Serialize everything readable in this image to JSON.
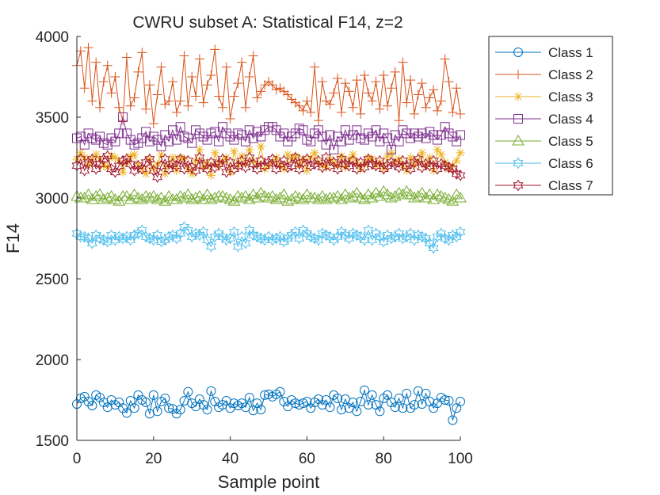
{
  "chart_data": {
    "type": "line",
    "title": "CWRU subset A: Statistical F14, z=2",
    "xlabel": "Sample point",
    "ylabel": "F14",
    "xlim": [
      0,
      100
    ],
    "ylim": [
      1500,
      4000
    ],
    "xticks": [
      "0",
      "20",
      "40",
      "60",
      "80",
      "100"
    ],
    "yticks": [
      "1500",
      "2000",
      "2500",
      "3000",
      "3500",
      "4000"
    ],
    "grid": false,
    "legend_position": "outside-top-right",
    "series": [
      {
        "name": "Class 1",
        "color": "#0072BD",
        "marker": "circle",
        "values": [
          1725,
          1760,
          1770,
          1740,
          1715,
          1780,
          1765,
          1735,
          1705,
          1750,
          1720,
          1735,
          1700,
          1670,
          1745,
          1700,
          1780,
          1750,
          1735,
          1665,
          1780,
          1680,
          1740,
          1760,
          1700,
          1695,
          1665,
          1690,
          1745,
          1800,
          1730,
          1710,
          1755,
          1720,
          1690,
          1805,
          1740,
          1705,
          1720,
          1745,
          1700,
          1730,
          1715,
          1730,
          1705,
          1765,
          1685,
          1730,
          1690,
          1780,
          1785,
          1770,
          1785,
          1800,
          1740,
          1710,
          1750,
          1730,
          1720,
          1730,
          1740,
          1700,
          1735,
          1755,
          1720,
          1750,
          1705,
          1780,
          1760,
          1690,
          1755,
          1700,
          1735,
          1680,
          1740,
          1810,
          1720,
          1780,
          1720,
          1680,
          1760,
          1780,
          1735,
          1705,
          1760,
          1700,
          1790,
          1700,
          1720,
          1805,
          1725,
          1790,
          1740,
          1700,
          1730,
          1765,
          1750,
          1745,
          1625,
          1700,
          1740
        ]
      },
      {
        "name": "Class 2",
        "color": "#D95319",
        "marker": "plus",
        "values": [
          3820,
          3910,
          3680,
          3930,
          3600,
          3840,
          3560,
          3720,
          3820,
          3650,
          3750,
          3560,
          3480,
          3870,
          3570,
          3620,
          3780,
          3900,
          3550,
          3700,
          3460,
          3640,
          3810,
          3580,
          3600,
          3720,
          3530,
          3600,
          3880,
          3570,
          3750,
          3630,
          3860,
          3590,
          3700,
          3760,
          3920,
          3630,
          3560,
          3810,
          3490,
          3630,
          3710,
          3840,
          3560,
          3750,
          3880,
          3620,
          3660,
          3700,
          3720,
          3700,
          3670,
          3680,
          3660,
          3640,
          3610,
          3590,
          3570,
          3540,
          3600,
          3530,
          3810,
          3480,
          3720,
          3600,
          3580,
          3650,
          3740,
          3530,
          3710,
          3660,
          3560,
          3730,
          3520,
          3760,
          3650,
          3600,
          3720,
          3550,
          3760,
          3570,
          3680,
          3780,
          3480,
          3840,
          3590,
          3730,
          3520,
          3640,
          3710,
          3560,
          3620,
          3670,
          3540,
          3600,
          3860,
          3720,
          3530,
          3680,
          3520
        ]
      },
      {
        "name": "Class 3",
        "color": "#EDB120",
        "marker": "star",
        "values": [
          3240,
          3280,
          3250,
          3200,
          3240,
          3270,
          3240,
          3200,
          3190,
          3260,
          3250,
          3230,
          3160,
          3220,
          3260,
          3270,
          3200,
          3180,
          3150,
          3240,
          3180,
          3210,
          3270,
          3150,
          3200,
          3250,
          3170,
          3250,
          3240,
          3180,
          3150,
          3230,
          3300,
          3190,
          3220,
          3140,
          3280,
          3200,
          3230,
          3250,
          3160,
          3290,
          3200,
          3260,
          3210,
          3300,
          3230,
          3210,
          3320,
          3180,
          3200,
          3220,
          3250,
          3200,
          3180,
          3270,
          3240,
          3260,
          3200,
          3240,
          3170,
          3250,
          3280,
          3220,
          3200,
          3190,
          3240,
          3220,
          3200,
          3260,
          3190,
          3240,
          3270,
          3220,
          3180,
          3210,
          3250,
          3240,
          3200,
          3220,
          3180,
          3260,
          3280,
          3220,
          3240,
          3200,
          3170,
          3250,
          3200,
          3230,
          3280,
          3200,
          3250,
          3170,
          3300,
          3270,
          3220,
          3180,
          3200,
          3230,
          3280
        ]
      },
      {
        "name": "Class 4",
        "color": "#7E2F8E",
        "marker": "square",
        "values": [
          3370,
          3380,
          3330,
          3400,
          3370,
          3360,
          3380,
          3340,
          3330,
          3370,
          3350,
          3400,
          3500,
          3400,
          3360,
          3330,
          3340,
          3370,
          3410,
          3350,
          3380,
          3360,
          3320,
          3390,
          3350,
          3420,
          3360,
          3440,
          3380,
          3370,
          3340,
          3420,
          3400,
          3380,
          3360,
          3400,
          3410,
          3350,
          3440,
          3400,
          3380,
          3360,
          3400,
          3390,
          3350,
          3420,
          3370,
          3410,
          3380,
          3420,
          3440,
          3440,
          3420,
          3380,
          3400,
          3350,
          3380,
          3400,
          3430,
          3420,
          3360,
          3350,
          3400,
          3420,
          3380,
          3330,
          3390,
          3300,
          3380,
          3350,
          3420,
          3360,
          3390,
          3420,
          3370,
          3360,
          3400,
          3380,
          3420,
          3350,
          3400,
          3370,
          3300,
          3390,
          3350,
          3420,
          3400,
          3370,
          3400,
          3380,
          3400,
          3370,
          3410,
          3390,
          3360,
          3390,
          3440,
          3400,
          3380,
          3350,
          3390
        ]
      },
      {
        "name": "Class 5",
        "color": "#77AC30",
        "marker": "triangle",
        "values": [
          3010,
          3000,
          3000,
          3020,
          2990,
          3010,
          3020,
          2990,
          3000,
          3010,
          2990,
          2980,
          3010,
          3010,
          2990,
          3020,
          3000,
          2990,
          3010,
          3000,
          3010,
          2990,
          3000,
          2980,
          3010,
          2990,
          2990,
          3010,
          3000,
          3020,
          2990,
          3000,
          3010,
          2990,
          3020,
          2990,
          3000,
          3010,
          3010,
          3000,
          2990,
          2980,
          3010,
          3000,
          3010,
          2990,
          3020,
          3000,
          3030,
          3010,
          3000,
          3010,
          2990,
          3000,
          3020,
          2980,
          2990,
          3010,
          3000,
          2990,
          3020,
          3000,
          3000,
          2990,
          3010,
          2990,
          3000,
          3000,
          3010,
          2990,
          3020,
          3000,
          3010,
          3030,
          3000,
          2990,
          3020,
          3000,
          3030,
          3010,
          3040,
          3020,
          3000,
          3010,
          3030,
          3020,
          3040,
          3020,
          3000,
          3010,
          3030,
          3000,
          3020,
          2990,
          3020,
          3010,
          3000,
          2990,
          2980,
          3020,
          3000
        ]
      },
      {
        "name": "Class 6",
        "color": "#4DBEEE",
        "marker": "hexagram",
        "values": [
          2780,
          2760,
          2760,
          2750,
          2720,
          2770,
          2750,
          2740,
          2730,
          2770,
          2740,
          2760,
          2750,
          2760,
          2740,
          2770,
          2780,
          2800,
          2760,
          2750,
          2740,
          2770,
          2730,
          2740,
          2760,
          2770,
          2750,
          2780,
          2820,
          2800,
          2760,
          2780,
          2770,
          2790,
          2740,
          2700,
          2760,
          2780,
          2760,
          2740,
          2750,
          2790,
          2700,
          2760,
          2720,
          2800,
          2770,
          2760,
          2750,
          2740,
          2760,
          2740,
          2750,
          2760,
          2730,
          2750,
          2770,
          2790,
          2750,
          2800,
          2780,
          2760,
          2750,
          2740,
          2780,
          2770,
          2760,
          2740,
          2760,
          2790,
          2770,
          2750,
          2780,
          2770,
          2760,
          2740,
          2800,
          2740,
          2780,
          2760,
          2730,
          2770,
          2750,
          2760,
          2780,
          2750,
          2760,
          2780,
          2740,
          2770,
          2760,
          2750,
          2720,
          2690,
          2760,
          2780,
          2750,
          2740,
          2770,
          2760,
          2790
        ]
      },
      {
        "name": "Class 7",
        "color": "#A2142F",
        "marker": "hexagram",
        "values": [
          3200,
          3240,
          3170,
          3220,
          3240,
          3180,
          3210,
          3240,
          3260,
          3180,
          3160,
          3200,
          3230,
          3240,
          3210,
          3170,
          3200,
          3180,
          3220,
          3240,
          3170,
          3130,
          3200,
          3240,
          3180,
          3210,
          3200,
          3240,
          3180,
          3230,
          3190,
          3170,
          3250,
          3200,
          3180,
          3220,
          3190,
          3210,
          3240,
          3160,
          3220,
          3180,
          3200,
          3230,
          3190,
          3250,
          3210,
          3180,
          3230,
          3200,
          3220,
          3240,
          3180,
          3210,
          3230,
          3190,
          3200,
          3250,
          3180,
          3220,
          3240,
          3200,
          3210,
          3230,
          3190,
          3250,
          3200,
          3220,
          3180,
          3240,
          3210,
          3200,
          3230,
          3180,
          3220,
          3190,
          3240,
          3210,
          3200,
          3230,
          3180,
          3200,
          3220,
          3210,
          3190,
          3230,
          3200,
          3180,
          3220,
          3240,
          3190,
          3210,
          3200,
          3230,
          3180,
          3210,
          3200,
          3190,
          3180,
          3150,
          3140
        ]
      }
    ]
  }
}
